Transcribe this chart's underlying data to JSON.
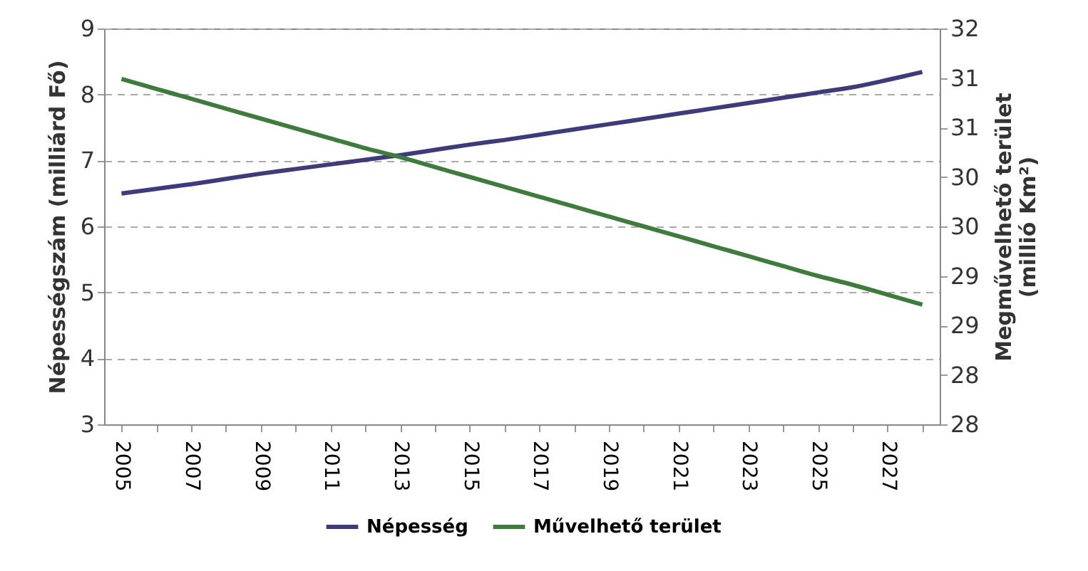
{
  "chart_data": {
    "type": "line",
    "categories": [
      "2005",
      null,
      "2007",
      null,
      "2009",
      null,
      "2011",
      null,
      "2013",
      null,
      "2015",
      null,
      "2017",
      null,
      "2019",
      null,
      "2021",
      null,
      "2023",
      null,
      "2025",
      null,
      "2027",
      null
    ],
    "series": [
      {
        "name": "Népesség",
        "color": "#3d3b7a",
        "values": [
          6.5,
          6.57,
          6.64,
          6.72,
          6.8,
          6.87,
          6.94,
          7.01,
          7.08,
          7.16,
          7.24,
          7.31,
          7.39,
          7.47,
          7.55,
          7.63,
          7.71,
          7.79,
          7.87,
          7.95,
          8.03,
          8.11,
          8.22,
          8.34
        ]
      },
      {
        "name": "Művelhető terület",
        "color": "#3e7b3c",
        "axis": "y2",
        "values": [
          31.49,
          31.39,
          31.29,
          31.19,
          31.09,
          30.99,
          30.89,
          30.79,
          30.7,
          30.6,
          30.5,
          30.4,
          30.3,
          30.2,
          30.1,
          30.0,
          29.9,
          29.8,
          29.7,
          29.6,
          29.5,
          29.41,
          29.31,
          29.21
        ]
      }
    ],
    "ylabel": "Népességszám (milliárd Fő)",
    "y2label": "Megművelhető terület\n(millió Km²)",
    "ylim": [
      3,
      9
    ],
    "yticks": [
      3,
      4,
      5,
      6,
      7,
      8,
      9
    ],
    "y2lim": [
      28,
      32
    ],
    "y2ticks": [
      28,
      {
        "value": 28.5,
        "label": "28"
      },
      29,
      {
        "value": 29.5,
        "label": "29"
      },
      30,
      {
        "value": 30.5,
        "label": "30"
      },
      31,
      {
        "value": 31.5,
        "label": "31"
      },
      32
    ],
    "grid": "y",
    "legend": "bottom",
    "line_style": "solid"
  }
}
